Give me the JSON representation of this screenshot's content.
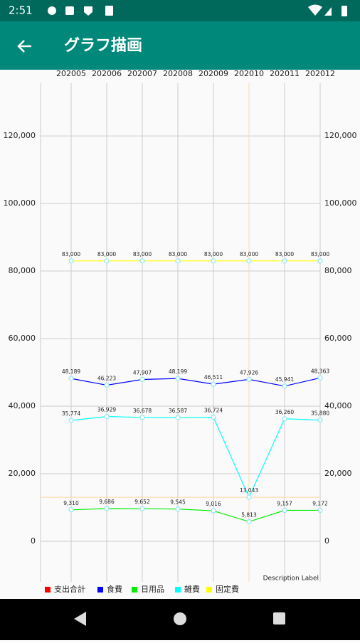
{
  "status_bar": {
    "time": "2:51"
  },
  "app_bar": {
    "title": "グラフ描画"
  },
  "chart_data": {
    "type": "line",
    "categories": [
      "202005",
      "202006",
      "202007",
      "202008",
      "202009",
      "202010",
      "202011",
      "202012"
    ],
    "series": [
      {
        "name": "支出合計",
        "color": "#ff0000",
        "values": [
          null,
          null,
          null,
          null,
          null,
          null,
          null,
          null
        ]
      },
      {
        "name": "食費",
        "color": "#0000ff",
        "values": [
          48189,
          46223,
          47907,
          48199,
          46511,
          47926,
          45941,
          48363
        ],
        "value_labels": [
          "48,189",
          "46,223",
          "47,907",
          "48,199",
          "46,511",
          "47,926",
          "45,941",
          "48,363"
        ]
      },
      {
        "name": "日用品",
        "color": "#00ee00",
        "values": [
          9310,
          9686,
          9652,
          9545,
          9016,
          5813,
          9157,
          9172
        ],
        "value_labels": [
          "9,310",
          "9,686",
          "9,652",
          "9,545",
          "9,016",
          "5,813",
          "9,157",
          "9,172"
        ]
      },
      {
        "name": "雑費",
        "color": "#00ffff",
        "values": [
          35774,
          36929,
          36678,
          36587,
          36724,
          13043,
          36260,
          35880
        ],
        "value_labels": [
          "35,774",
          "36,929",
          "36,678",
          "36,587",
          "36,724",
          "13,043",
          "36,260",
          "35,880"
        ]
      },
      {
        "name": "固定費",
        "color": "#ffff00",
        "values": [
          83000,
          83000,
          83000,
          83000,
          83000,
          83000,
          83000,
          83000
        ],
        "value_labels": [
          "83,000",
          "83,000",
          "83,000",
          "83,000",
          "83,000",
          "83,000",
          "83,000",
          "83,000"
        ]
      }
    ],
    "ylim": [
      -12000,
      135600
    ],
    "yticks": [
      0,
      {
        "value": 20000,
        "label": "20,000"
      },
      {
        "value": 40000,
        "label": "40,000"
      },
      {
        "value": 60000,
        "label": "60,000"
      },
      {
        "value": 80000,
        "label": "80,000"
      },
      {
        "value": 100000,
        "label": "100,000"
      },
      {
        "value": 120000,
        "label": "120,000"
      }
    ],
    "grid": true,
    "highlight": {
      "series": 3,
      "index": 5
    },
    "description": "Description Label"
  }
}
